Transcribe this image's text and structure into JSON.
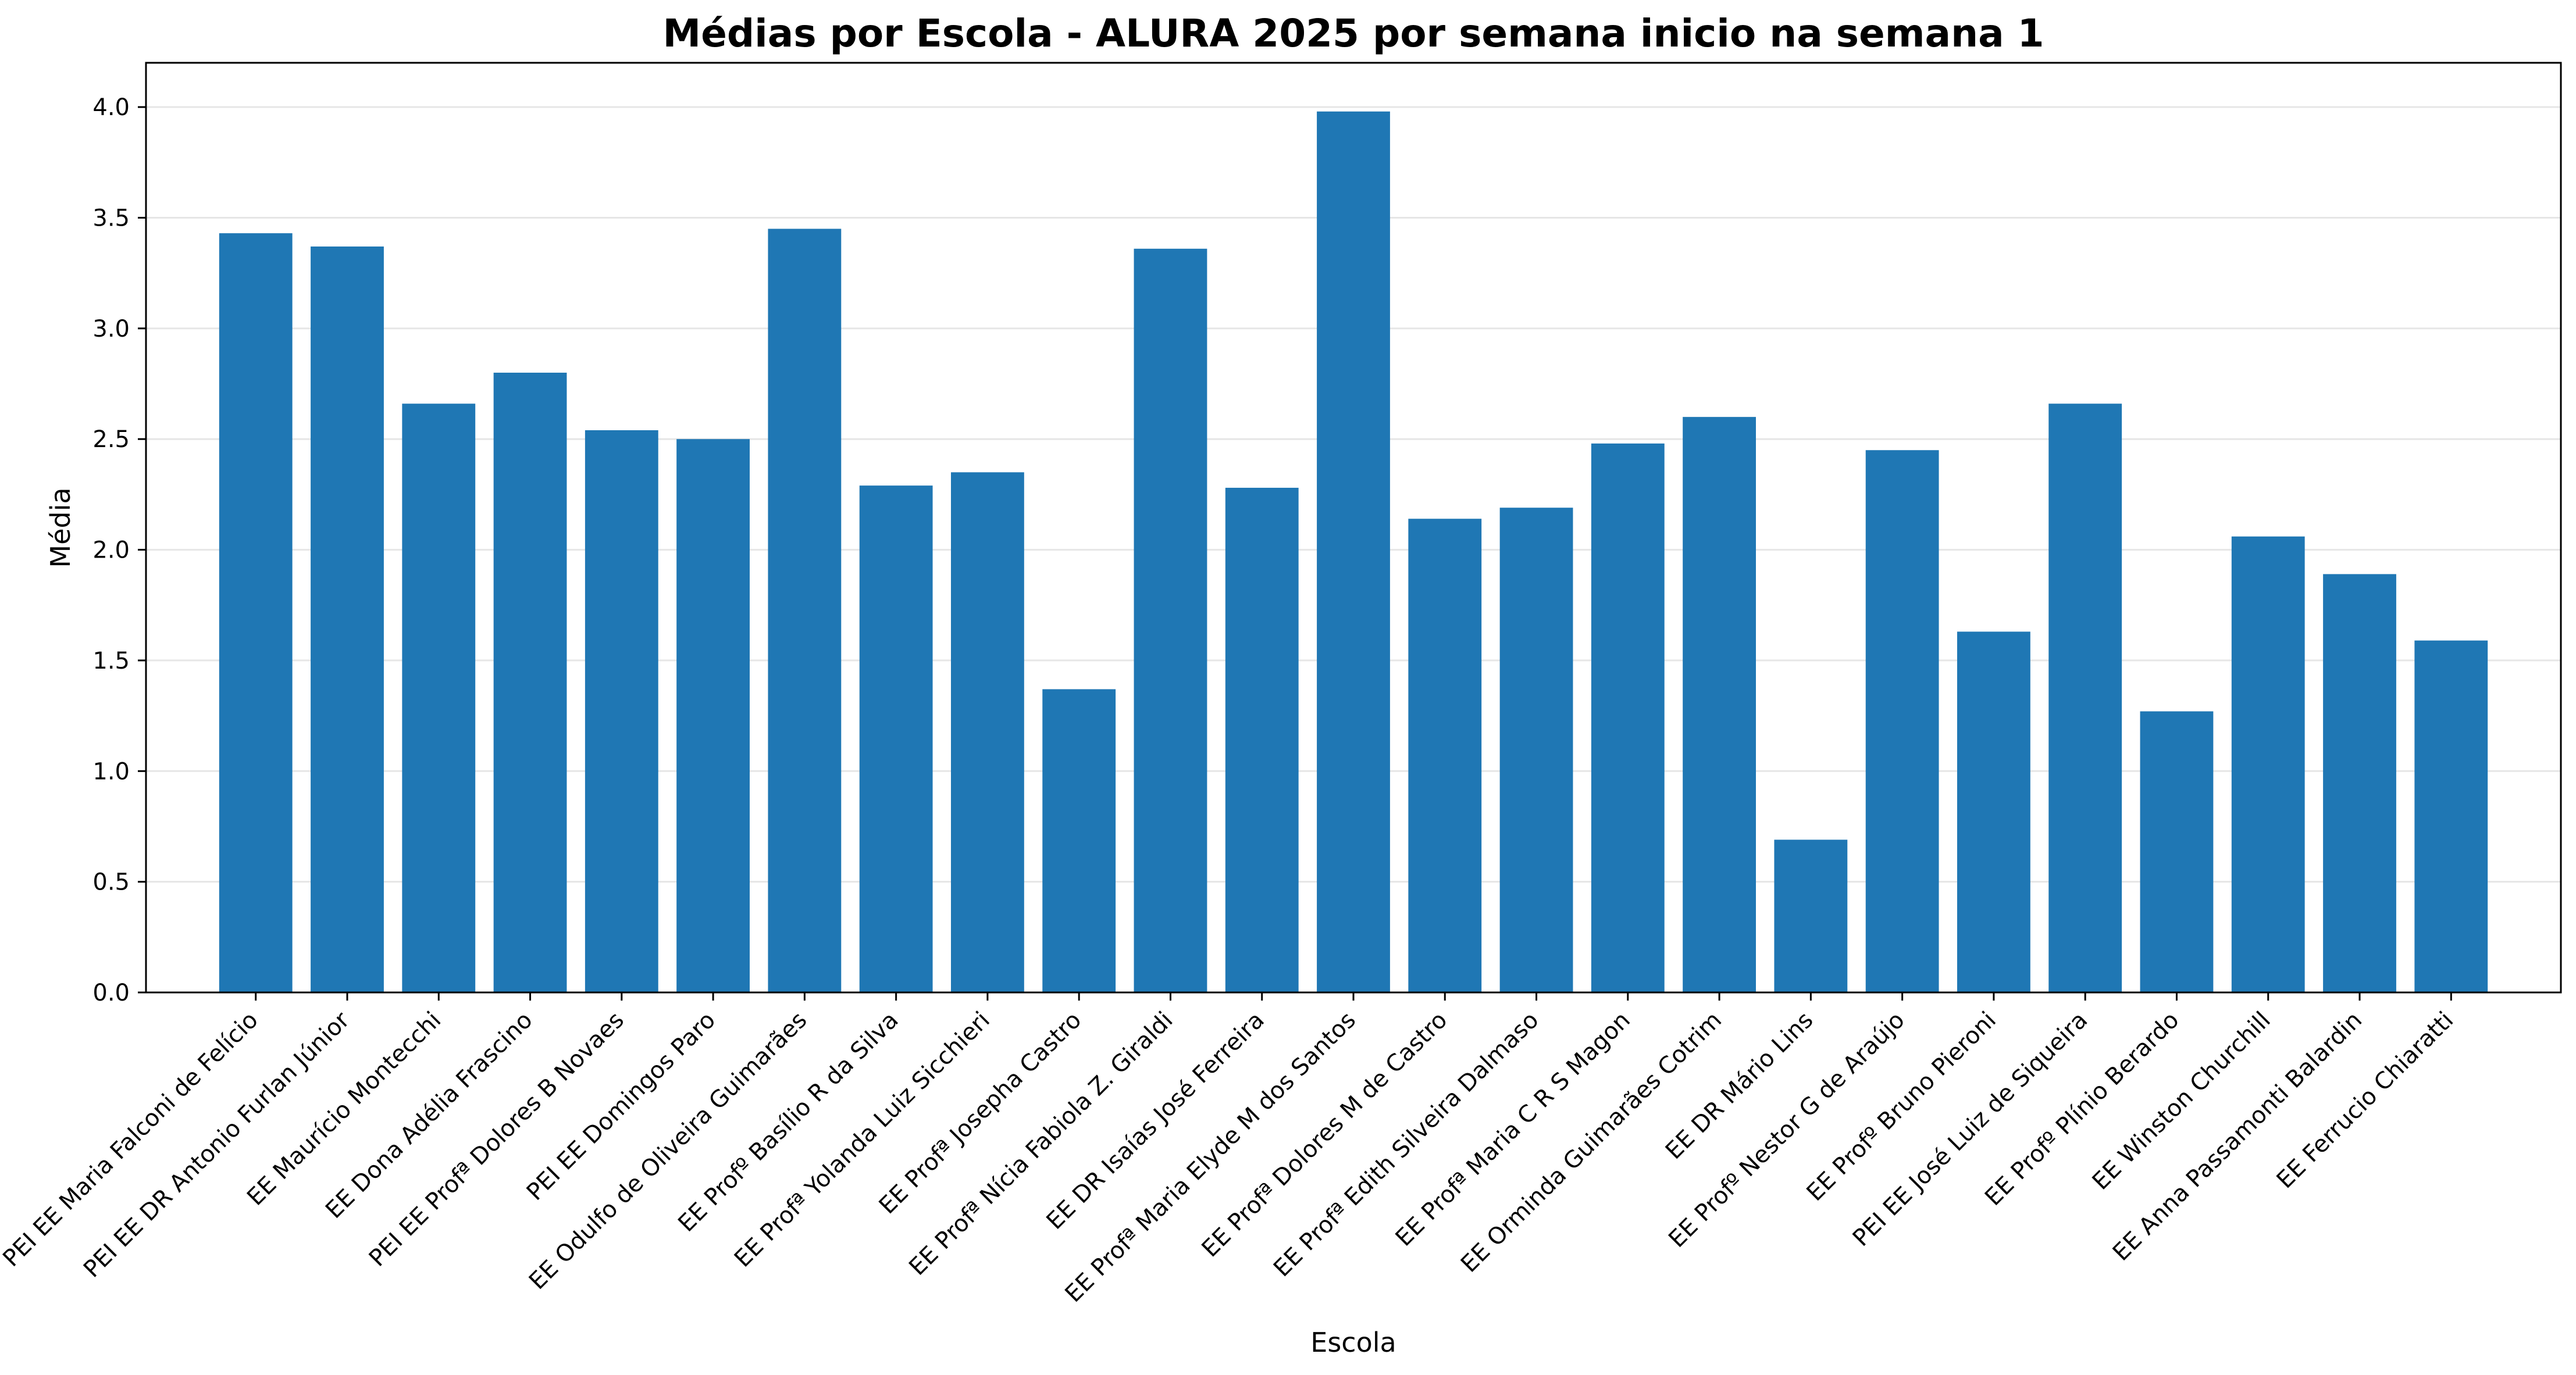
{
  "chart_data": {
    "type": "bar",
    "title": "Médias por Escola - ALURA 2025  por semana inicio na semana 1",
    "xlabel": "Escola",
    "ylabel": "Média",
    "ylim": [
      0,
      4.2
    ],
    "yticks": [
      "0.0",
      "0.5",
      "1.0",
      "1.5",
      "2.0",
      "2.5",
      "3.0",
      "3.5",
      "4.0"
    ],
    "grid": "horizontal",
    "bar_color": "#1f77b4",
    "categories": [
      "PEI EE Maria Falconi de Felício",
      "PEI EE DR Antonio Furlan Júnior",
      "EE Maurício Montecchi",
      "EE Dona Adélia Frascino",
      "PEI EE Profª Dolores B Novaes",
      "PEI EE Domingos Paro",
      "EE Odulfo de Oliveira Guimarães",
      "EE Profº Basílio R da Silva",
      "EE Profª Yolanda Luiz Sicchieri",
      "EE Profª Josepha Castro",
      "EE Profª Nícia Fabiola Z. Giraldi",
      "EE DR Isaías José Ferreira",
      "EE Profª Maria Elyde M dos Santos",
      "EE Profª Dolores M de Castro",
      "EE Profª Edith Silveira Dalmaso",
      "EE Profª Maria C R S Magon",
      "EE Orminda Guimarães Cotrim",
      "EE DR Mário Lins",
      "EE Profº Nestor G de Araújo",
      "EE Profº Bruno Pieroni",
      "PEI EE José Luiz de Siqueira",
      "EE Profº Plínio Berardo",
      "EE Winston Churchill",
      "EE Anna Passamonti Balardin",
      "EE Ferrucio Chiaratti"
    ],
    "values": [
      3.43,
      3.37,
      2.66,
      2.8,
      2.54,
      2.5,
      3.45,
      2.29,
      2.35,
      1.37,
      3.36,
      2.28,
      3.98,
      2.14,
      2.19,
      2.48,
      2.6,
      0.69,
      2.45,
      1.63,
      2.66,
      1.27,
      2.06,
      1.89,
      1.59
    ]
  }
}
